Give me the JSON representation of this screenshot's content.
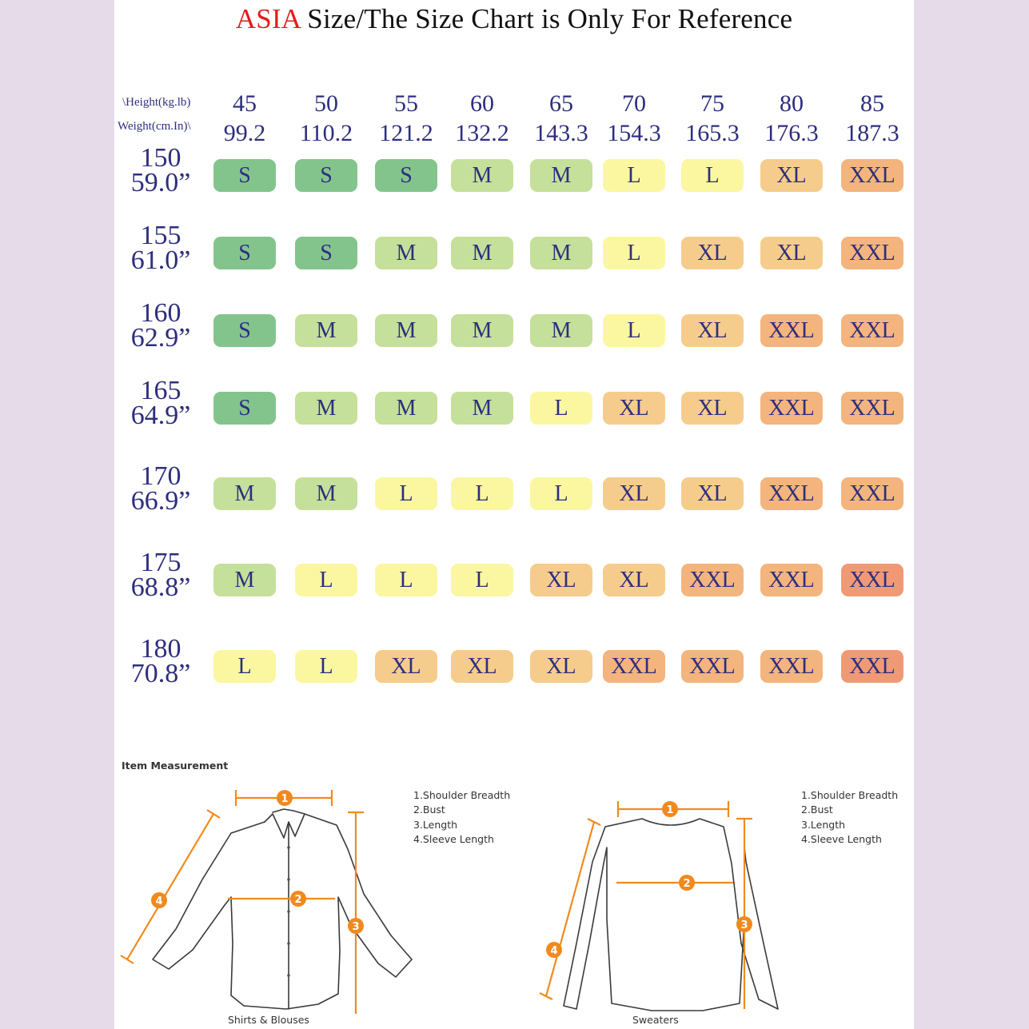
{
  "title": {
    "highlight": "ASIA",
    "rest": " Size/The Size Chart is Only For Reference"
  },
  "header": {
    "height_label": "\\Height(kg.lb)",
    "weight_label": "Weight(cm.In)\\"
  },
  "weights_kg": [
    "45",
    "50",
    "55",
    "60",
    "65",
    "70",
    "75",
    "80",
    "85"
  ],
  "weights_lb": [
    "99.2",
    "110.2",
    "121.2",
    "132.2",
    "143.3",
    "154.3",
    "165.3",
    "176.3",
    "187.3"
  ],
  "rows": [
    {
      "cm": "150",
      "in": "59.0”",
      "sizes": [
        "S",
        "S",
        "S",
        "M",
        "M",
        "L",
        "L",
        "XL",
        "XXL"
      ]
    },
    {
      "cm": "155",
      "in": "61.0”",
      "sizes": [
        "S",
        "S",
        "M",
        "M",
        "M",
        "L",
        "XL",
        "XL",
        "XXL"
      ]
    },
    {
      "cm": "160",
      "in": "62.9”",
      "sizes": [
        "S",
        "M",
        "M",
        "M",
        "M",
        "L",
        "XL",
        "XXL",
        "XXL"
      ]
    },
    {
      "cm": "165",
      "in": "64.9”",
      "sizes": [
        "S",
        "M",
        "M",
        "M",
        "L",
        "XL",
        "XL",
        "XXL",
        "XXL"
      ]
    },
    {
      "cm": "170",
      "in": "66.9”",
      "sizes": [
        "M",
        "M",
        "L",
        "L",
        "L",
        "XL",
        "XL",
        "XXL",
        "XXL"
      ]
    },
    {
      "cm": "175",
      "in": "68.8”",
      "sizes": [
        "M",
        "L",
        "L",
        "L",
        "XL",
        "XL",
        "XXL",
        "XXL",
        "XXL"
      ]
    },
    {
      "cm": "180",
      "in": "70.8”",
      "sizes": [
        "L",
        "L",
        "XL",
        "XL",
        "XL",
        "XXL",
        "XXL",
        "XXL",
        "XXL"
      ]
    }
  ],
  "cell_tones": [
    [
      "S",
      "S",
      "S",
      "M",
      "M",
      "L",
      "L",
      "XL",
      "XXL"
    ],
    [
      "S",
      "S",
      "M",
      "M",
      "M",
      "L",
      "XL",
      "XL",
      "XXL"
    ],
    [
      "S",
      "M",
      "M",
      "M",
      "M",
      "L",
      "XL",
      "XXL",
      "XXL"
    ],
    [
      "S",
      "M",
      "M",
      "M",
      "L",
      "XL",
      "XL",
      "XXL",
      "XXL"
    ],
    [
      "M",
      "M",
      "L",
      "L",
      "L",
      "XL",
      "XL",
      "XXL",
      "XXL"
    ],
    [
      "M",
      "L",
      "L",
      "L",
      "XL",
      "XL",
      "XXL",
      "XXL",
      "XXXL"
    ],
    [
      "L",
      "L",
      "XL",
      "XL",
      "XL",
      "XXL",
      "XXL",
      "XXL",
      "XXXL"
    ]
  ],
  "colors": {
    "S": "#83c48d",
    "M": "#c5e09a",
    "L": "#fbf7a1",
    "XL": "#f6cc8c",
    "XXL": "#f3b47d",
    "XXXL": "#ef9a75",
    "text": "#2d2e7e",
    "accent_red": "#e21d1d",
    "marker_orange": "#f08a1e"
  },
  "measurement": {
    "title": "Item Measurement",
    "shirt": {
      "caption": "Shirts & Blouses",
      "items": [
        "1.Shoulder Breadth",
        "2.Bust",
        "3.Length",
        "4.Sleeve Length"
      ],
      "markers": [
        "1",
        "2",
        "3",
        "4"
      ]
    },
    "sweater": {
      "caption": "Sweaters",
      "items": [
        "1.Shoulder Breadth",
        "2.Bust",
        "3.Length",
        "4.Sleeve Length"
      ],
      "markers": [
        "1",
        "2",
        "3",
        "4"
      ]
    }
  }
}
